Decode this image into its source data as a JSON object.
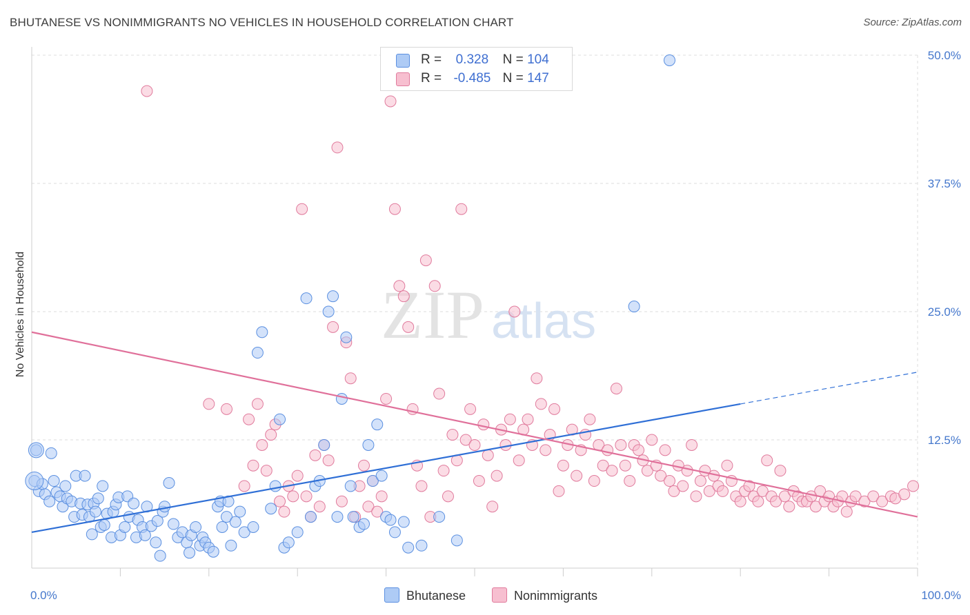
{
  "title": "BHUTANESE VS NONIMMIGRANTS NO VEHICLES IN HOUSEHOLD CORRELATION CHART",
  "source": "Source: ZipAtlas.com",
  "watermark": {
    "zip": "ZIP",
    "atlas": "atlas"
  },
  "legend": {
    "r_label": "R =",
    "n_label": "N =",
    "items": [
      {
        "name": "Bhutanese",
        "r": "0.328",
        "n": "104",
        "fill": "#aecbf5",
        "stroke": "#5a8fe0"
      },
      {
        "name": "Nonimmigrants",
        "r": "-0.485",
        "n": "147",
        "fill": "#f7bfd0",
        "stroke": "#e07a9c"
      }
    ]
  },
  "colors": {
    "blue_line": "#2f6fd6",
    "pink_line": "#e0709a",
    "grid": "#dddddd",
    "axis_text": "#4477cc"
  },
  "chart_data": {
    "type": "scatter",
    "xlabel": "",
    "ylabel": "No Vehicles in Household",
    "xlim": [
      0,
      100
    ],
    "ylim": [
      0,
      50
    ],
    "x_tick_labels": [
      "0.0%",
      "100.0%"
    ],
    "y_ticks": [
      12.5,
      25.0,
      37.5,
      50.0
    ],
    "y_tick_labels": [
      "12.5%",
      "25.0%",
      "37.5%",
      "50.0%"
    ],
    "grid": true,
    "series": [
      {
        "name": "Bhutanese",
        "trend": {
          "x0": 0,
          "y0": 3.5,
          "x1": 80,
          "y1": 16.0,
          "dash_to_x": 100,
          "dash_to_y": 19.1
        },
        "points": [
          [
            0.3,
            8.5
          ],
          [
            0.5,
            11.5
          ],
          [
            0.8,
            7.5
          ],
          [
            1.2,
            8.2
          ],
          [
            1.5,
            7.2
          ],
          [
            2,
            6.5
          ],
          [
            2.2,
            11.2
          ],
          [
            2.5,
            8.5
          ],
          [
            2.8,
            7.4
          ],
          [
            3.2,
            7.0
          ],
          [
            3.5,
            6.0
          ],
          [
            3.8,
            8.0
          ],
          [
            4,
            6.8
          ],
          [
            4.5,
            6.5
          ],
          [
            4.8,
            5.0
          ],
          [
            5,
            9.0
          ],
          [
            5.5,
            6.3
          ],
          [
            5.7,
            5.2
          ],
          [
            6,
            9.0
          ],
          [
            6.3,
            6.2
          ],
          [
            6.5,
            5.0
          ],
          [
            6.8,
            3.3
          ],
          [
            7,
            6.3
          ],
          [
            7.2,
            5.5
          ],
          [
            7.5,
            6.8
          ],
          [
            7.8,
            4.0
          ],
          [
            8,
            8.0
          ],
          [
            8.2,
            4.2
          ],
          [
            8.5,
            5.3
          ],
          [
            9,
            3.0
          ],
          [
            9.2,
            5.5
          ],
          [
            9.5,
            6.2
          ],
          [
            9.8,
            6.9
          ],
          [
            10,
            3.2
          ],
          [
            10.5,
            4.0
          ],
          [
            10.8,
            7.0
          ],
          [
            11,
            5.0
          ],
          [
            11.5,
            6.3
          ],
          [
            11.8,
            3.0
          ],
          [
            12,
            4.7
          ],
          [
            12.5,
            4.0
          ],
          [
            12.8,
            3.2
          ],
          [
            13,
            6.0
          ],
          [
            13.5,
            4.1
          ],
          [
            14,
            2.5
          ],
          [
            14.2,
            4.6
          ],
          [
            14.5,
            1.2
          ],
          [
            14.8,
            5.5
          ],
          [
            15,
            6.0
          ],
          [
            15.5,
            8.3
          ],
          [
            16,
            4.3
          ],
          [
            16.5,
            3.0
          ],
          [
            17,
            3.5
          ],
          [
            17.5,
            2.5
          ],
          [
            17.8,
            1.5
          ],
          [
            18,
            3.2
          ],
          [
            18.5,
            4.0
          ],
          [
            19,
            2.2
          ],
          [
            19.3,
            3.0
          ],
          [
            19.6,
            2.5
          ],
          [
            20,
            2.0
          ],
          [
            20.5,
            1.6
          ],
          [
            21,
            6.0
          ],
          [
            21.3,
            6.5
          ],
          [
            21.5,
            4.0
          ],
          [
            22,
            5.0
          ],
          [
            22.2,
            6.5
          ],
          [
            22.5,
            2.2
          ],
          [
            23,
            4.5
          ],
          [
            23.5,
            5.5
          ],
          [
            24,
            3.5
          ],
          [
            25,
            4.0
          ],
          [
            25.5,
            21.0
          ],
          [
            26,
            23.0
          ],
          [
            27,
            5.8
          ],
          [
            27.5,
            8.0
          ],
          [
            28,
            14.5
          ],
          [
            28.5,
            2.0
          ],
          [
            29,
            2.5
          ],
          [
            30,
            3.5
          ],
          [
            31,
            26.3
          ],
          [
            31.5,
            5.0
          ],
          [
            32,
            8.0
          ],
          [
            32.5,
            8.5
          ],
          [
            33,
            12.0
          ],
          [
            33.5,
            25.0
          ],
          [
            34,
            26.5
          ],
          [
            34.5,
            5.0
          ],
          [
            35,
            16.5
          ],
          [
            35.5,
            22.5
          ],
          [
            36,
            8.0
          ],
          [
            36.3,
            5.0
          ],
          [
            37,
            4.0
          ],
          [
            37.5,
            4.3
          ],
          [
            38,
            12.0
          ],
          [
            38.5,
            8.5
          ],
          [
            39,
            14.0
          ],
          [
            39.5,
            9.0
          ],
          [
            40,
            5.0
          ],
          [
            40.5,
            4.7
          ],
          [
            41,
            3.5
          ],
          [
            42,
            4.5
          ],
          [
            42.5,
            2.0
          ],
          [
            44,
            2.2
          ],
          [
            46,
            5.0
          ],
          [
            48,
            2.7
          ],
          [
            68,
            25.5
          ],
          [
            72,
            49.5
          ]
        ]
      },
      {
        "name": "Nonimmigrants",
        "trend": {
          "x0": 0,
          "y0": 23.0,
          "x1": 100,
          "y1": 5.0
        },
        "points": [
          [
            13,
            46.5
          ],
          [
            20,
            16.0
          ],
          [
            22,
            15.5
          ],
          [
            24,
            8.0
          ],
          [
            24.5,
            14.5
          ],
          [
            25,
            10.0
          ],
          [
            25.5,
            16.0
          ],
          [
            26,
            12.0
          ],
          [
            26.5,
            9.5
          ],
          [
            27,
            13.0
          ],
          [
            27.5,
            14.0
          ],
          [
            28,
            6.5
          ],
          [
            28.5,
            5.5
          ],
          [
            29,
            8.0
          ],
          [
            29.5,
            7.0
          ],
          [
            30,
            9.0
          ],
          [
            30.5,
            35.0
          ],
          [
            31,
            7.0
          ],
          [
            31.5,
            5.0
          ],
          [
            32,
            11.0
          ],
          [
            32.5,
            6.0
          ],
          [
            33,
            12.0
          ],
          [
            33.5,
            10.5
          ],
          [
            34,
            23.5
          ],
          [
            34.5,
            41.0
          ],
          [
            35,
            6.5
          ],
          [
            35.5,
            22.0
          ],
          [
            36,
            18.5
          ],
          [
            36.5,
            5.0
          ],
          [
            37,
            8.0
          ],
          [
            37.5,
            10.0
          ],
          [
            38,
            6.0
          ],
          [
            38.5,
            8.5
          ],
          [
            39,
            5.5
          ],
          [
            39.5,
            7.0
          ],
          [
            40,
            16.5
          ],
          [
            40.5,
            45.5
          ],
          [
            41,
            35.0
          ],
          [
            41.5,
            27.5
          ],
          [
            42,
            26.5
          ],
          [
            42.5,
            23.5
          ],
          [
            43,
            15.5
          ],
          [
            43.5,
            10.0
          ],
          [
            44,
            8.0
          ],
          [
            44.5,
            30.0
          ],
          [
            45,
            5.0
          ],
          [
            45.5,
            27.5
          ],
          [
            46,
            17.0
          ],
          [
            46.5,
            9.5
          ],
          [
            47,
            7.0
          ],
          [
            47.5,
            13.0
          ],
          [
            48,
            10.5
          ],
          [
            48.5,
            35.0
          ],
          [
            49,
            12.5
          ],
          [
            49.5,
            15.5
          ],
          [
            50,
            12.0
          ],
          [
            50.5,
            8.5
          ],
          [
            51,
            14.0
          ],
          [
            51.5,
            11.0
          ],
          [
            52,
            6.0
          ],
          [
            52.5,
            9.0
          ],
          [
            53,
            13.5
          ],
          [
            53.5,
            12.0
          ],
          [
            54,
            14.5
          ],
          [
            54.5,
            25.0
          ],
          [
            55,
            10.5
          ],
          [
            55.5,
            13.5
          ],
          [
            56,
            14.5
          ],
          [
            56.5,
            12.0
          ],
          [
            57,
            18.5
          ],
          [
            57.5,
            16.0
          ],
          [
            58,
            11.5
          ],
          [
            58.5,
            13.0
          ],
          [
            59,
            15.5
          ],
          [
            59.5,
            7.5
          ],
          [
            60,
            10.0
          ],
          [
            60.5,
            12.0
          ],
          [
            61,
            13.5
          ],
          [
            61.5,
            9.0
          ],
          [
            62,
            11.5
          ],
          [
            62.5,
            13.0
          ],
          [
            63,
            14.5
          ],
          [
            63.5,
            8.5
          ],
          [
            64,
            12.0
          ],
          [
            64.5,
            10.0
          ],
          [
            65,
            11.5
          ],
          [
            65.5,
            9.5
          ],
          [
            66,
            17.5
          ],
          [
            66.5,
            12.0
          ],
          [
            67,
            10.0
          ],
          [
            67.5,
            8.5
          ],
          [
            68,
            12.0
          ],
          [
            68.5,
            11.5
          ],
          [
            69,
            10.5
          ],
          [
            69.5,
            9.5
          ],
          [
            70,
            12.5
          ],
          [
            70.5,
            10.0
          ],
          [
            71,
            9.0
          ],
          [
            71.5,
            11.5
          ],
          [
            72,
            8.5
          ],
          [
            72.5,
            7.5
          ],
          [
            73,
            10.0
          ],
          [
            73.5,
            8.0
          ],
          [
            74,
            9.5
          ],
          [
            74.5,
            12.0
          ],
          [
            75,
            7.0
          ],
          [
            75.5,
            8.5
          ],
          [
            76,
            9.5
          ],
          [
            76.5,
            7.5
          ],
          [
            77,
            9.0
          ],
          [
            77.5,
            8.0
          ],
          [
            78,
            7.5
          ],
          [
            78.5,
            10.0
          ],
          [
            79,
            8.5
          ],
          [
            79.5,
            7.0
          ],
          [
            80,
            6.5
          ],
          [
            80.5,
            7.5
          ],
          [
            81,
            8.0
          ],
          [
            81.5,
            7.0
          ],
          [
            82,
            6.5
          ],
          [
            82.5,
            7.5
          ],
          [
            83,
            10.5
          ],
          [
            83.5,
            7.0
          ],
          [
            84,
            6.5
          ],
          [
            84.5,
            9.5
          ],
          [
            85,
            7.0
          ],
          [
            85.5,
            6.0
          ],
          [
            86,
            7.5
          ],
          [
            86.5,
            7.0
          ],
          [
            87,
            6.5
          ],
          [
            87.5,
            6.5
          ],
          [
            88,
            7.0
          ],
          [
            88.5,
            6.0
          ],
          [
            89,
            7.5
          ],
          [
            89.5,
            6.5
          ],
          [
            90,
            7.0
          ],
          [
            90.5,
            6.0
          ],
          [
            91,
            6.5
          ],
          [
            91.5,
            7.0
          ],
          [
            92,
            5.5
          ],
          [
            92.5,
            6.5
          ],
          [
            93,
            7.0
          ],
          [
            94,
            6.5
          ],
          [
            95,
            7.0
          ],
          [
            96,
            6.5
          ],
          [
            97,
            7.0
          ],
          [
            97.5,
            6.8
          ],
          [
            98.5,
            7.2
          ],
          [
            99.5,
            8.0
          ]
        ]
      }
    ]
  }
}
